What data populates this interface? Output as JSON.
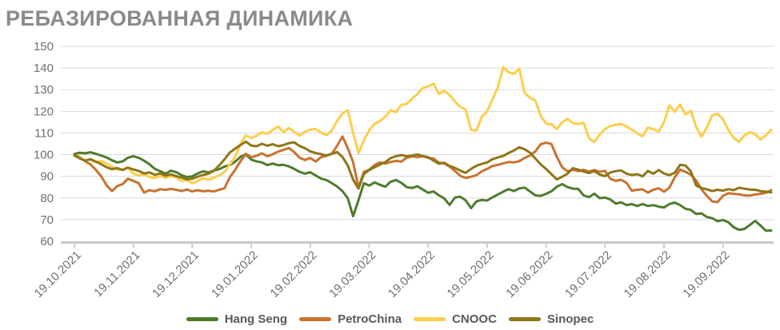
{
  "chart_data": {
    "type": "line",
    "title": "РЕБАЗИРОВАННАЯ ДИНАМИКА",
    "xlabel": "",
    "ylabel": "",
    "ylim": [
      60,
      150
    ],
    "yticks": [
      150,
      140,
      130,
      120,
      110,
      100,
      90,
      80,
      70,
      60
    ],
    "grid": true,
    "legend_position": "bottom",
    "x_tick_labels": [
      "19.10.2021",
      "19.11.2021",
      "19.12.2021",
      "19.01.2022",
      "19.02.2022",
      "19.03.2022",
      "19.04.2022",
      "19.05.2022",
      "19.06.2022",
      "19.07.2022",
      "19.08.2022",
      "19.09.2022"
    ],
    "points_per_month": 11,
    "series": [
      {
        "name": "Hang Seng",
        "color": "#4e7b2d",
        "values": [
          100.3,
          100.9,
          100.6,
          101.1,
          100.4,
          99.6,
          98.7,
          97.4,
          96.4,
          96.9,
          98.6,
          99.3,
          98.5,
          97.2,
          95.6,
          93.4,
          92.4,
          91.2,
          92.6,
          91.9,
          90.5,
          89.7,
          90.0,
          91.3,
          92.3,
          91.8,
          92.6,
          93.3,
          94.5,
          95.2,
          96.8,
          99.0,
          100.1,
          97.7,
          96.9,
          96.4,
          95.2,
          95.9,
          95.1,
          95.3,
          94.6,
          93.4,
          92.1,
          91.2,
          91.9,
          90.4,
          89.0,
          88.3,
          86.9,
          85.3,
          83.2,
          79.9,
          71.6,
          79.0,
          86.8,
          85.7,
          87.2,
          86.1,
          85.2,
          87.5,
          88.3,
          87.0,
          85.0,
          84.6,
          85.4,
          83.9,
          82.4,
          83.0,
          81.2,
          79.8,
          76.8,
          80.2,
          80.6,
          78.9,
          75.3,
          78.4,
          79.1,
          78.8,
          80.3,
          81.6,
          82.9,
          84.1,
          83.2,
          84.4,
          84.8,
          83.0,
          81.2,
          81.0,
          81.9,
          83.1,
          85.2,
          86.4,
          85.0,
          84.3,
          84.2,
          81.2,
          80.4,
          82.0,
          79.9,
          80.2,
          79.3,
          77.4,
          78.0,
          76.7,
          77.2,
          76.3,
          77.2,
          76.3,
          76.7,
          76.0,
          75.6,
          77.2,
          77.9,
          76.7,
          75.0,
          74.5,
          72.6,
          72.9,
          71.2,
          70.7,
          69.3,
          69.8,
          68.8,
          66.5,
          65.3,
          65.7,
          67.5,
          69.4,
          67.3,
          64.9,
          65.0
        ]
      },
      {
        "name": "PetroChina",
        "color": "#c9722f",
        "values": [
          99.8,
          98.9,
          97.0,
          95.5,
          93.0,
          90.0,
          85.9,
          83.2,
          85.5,
          86.4,
          88.9,
          87.9,
          86.8,
          82.5,
          83.6,
          83.1,
          84.1,
          83.7,
          84.2,
          83.8,
          83.2,
          83.9,
          83.0,
          83.6,
          83.1,
          83.4,
          83.0,
          83.8,
          84.5,
          89.6,
          93.0,
          97.0,
          100.4,
          98.8,
          99.5,
          100.6,
          99.3,
          100.2,
          101.4,
          102.2,
          103.1,
          101.2,
          98.6,
          97.5,
          98.5,
          96.8,
          98.8,
          99.5,
          100.3,
          104.0,
          108.4,
          103.0,
          96.5,
          84.8,
          92.0,
          93.0,
          95.2,
          96.4,
          95.9,
          96.6,
          97.1,
          96.8,
          98.6,
          99.2,
          98.8,
          99.3,
          98.5,
          98.2,
          96.3,
          95.9,
          94.5,
          92.5,
          90.2,
          89.3,
          89.8,
          90.5,
          92.3,
          93.4,
          94.8,
          95.3,
          96.0,
          96.6,
          96.4,
          97.0,
          98.5,
          99.6,
          101.5,
          104.8,
          105.5,
          104.9,
          99.0,
          94.2,
          92.3,
          93.1,
          92.4,
          93.0,
          92.2,
          92.9,
          92.1,
          92.5,
          88.8,
          87.9,
          88.4,
          87.0,
          83.4,
          83.8,
          84.0,
          82.5,
          83.8,
          84.5,
          82.9,
          84.8,
          89.5,
          93.1,
          92.1,
          90.8,
          88.0,
          84.0,
          81.0,
          78.4,
          78.1,
          81.0,
          82.2,
          81.9,
          81.7,
          81.2,
          81.1,
          81.6,
          81.9,
          82.4,
          83.6
        ]
      },
      {
        "name": "CNOOC",
        "color": "#fcce4b",
        "values": [
          99.5,
          98.6,
          97.4,
          97.8,
          96.5,
          97.1,
          95.8,
          94.6,
          93.0,
          93.3,
          94.0,
          91.2,
          90.4,
          91.0,
          89.7,
          89.3,
          90.2,
          89.3,
          90.2,
          89.5,
          87.8,
          88.3,
          86.8,
          87.8,
          89.1,
          88.5,
          89.3,
          90.4,
          92.0,
          95.5,
          99.0,
          105.0,
          108.9,
          107.7,
          108.8,
          110.4,
          109.6,
          111.4,
          113.0,
          110.4,
          112.3,
          110.5,
          108.8,
          110.6,
          111.5,
          111.9,
          110.2,
          109.0,
          111.0,
          115.5,
          119.0,
          120.5,
          110.0,
          100.8,
          106.5,
          111.3,
          114.2,
          115.5,
          117.5,
          120.5,
          119.6,
          123.0,
          123.4,
          125.8,
          128.0,
          130.8,
          131.5,
          132.8,
          128.0,
          129.5,
          127.5,
          124.5,
          122.0,
          120.8,
          111.5,
          111.0,
          117.5,
          120.0,
          125.5,
          131.0,
          140.5,
          138.0,
          137.3,
          139.8,
          128.5,
          126.3,
          125.0,
          118.0,
          114.3,
          114.0,
          111.8,
          115.0,
          116.5,
          114.6,
          114.2,
          114.8,
          107.5,
          105.8,
          109.3,
          111.8,
          113.2,
          113.8,
          114.2,
          113.0,
          111.5,
          109.9,
          108.5,
          112.5,
          111.8,
          110.6,
          115.0,
          122.7,
          119.8,
          123.2,
          118.6,
          120.3,
          112.8,
          108.3,
          112.5,
          118.2,
          118.9,
          116.3,
          111.5,
          107.8,
          105.9,
          108.9,
          110.4,
          109.5,
          107.0,
          108.9,
          111.5
        ]
      },
      {
        "name": "Sinopec",
        "color": "#8f7617",
        "values": [
          99.6,
          98.3,
          97.2,
          97.9,
          96.8,
          95.6,
          94.2,
          93.3,
          93.8,
          92.9,
          94.0,
          93.2,
          92.5,
          91.3,
          91.8,
          90.7,
          91.4,
          90.3,
          90.9,
          90.1,
          89.4,
          88.6,
          88.9,
          89.8,
          90.6,
          91.2,
          92.5,
          95.0,
          97.8,
          101.0,
          102.8,
          104.5,
          106.0,
          104.2,
          103.9,
          105.0,
          104.1,
          104.8,
          103.9,
          104.4,
          105.3,
          105.7,
          104.0,
          103.0,
          101.5,
          100.8,
          100.2,
          99.6,
          100.4,
          101.2,
          99.0,
          95.0,
          88.5,
          84.3,
          91.0,
          92.9,
          94.2,
          95.4,
          96.6,
          98.4,
          99.3,
          99.8,
          99.2,
          99.6,
          100.1,
          99.4,
          98.8,
          97.2,
          95.8,
          96.3,
          94.8,
          93.9,
          92.6,
          91.6,
          93.4,
          94.9,
          95.7,
          96.4,
          97.9,
          98.7,
          99.4,
          100.8,
          101.9,
          103.4,
          102.5,
          100.9,
          98.2,
          95.5,
          93.4,
          91.0,
          88.6,
          89.8,
          91.2,
          93.8,
          93.1,
          92.2,
          91.5,
          92.4,
          90.8,
          90.1,
          91.8,
          92.4,
          92.7,
          91.2,
          90.6,
          91.0,
          90.0,
          92.5,
          91.2,
          92.9,
          91.3,
          90.5,
          91.6,
          95.3,
          95.0,
          92.3,
          85.8,
          84.6,
          84.0,
          83.2,
          83.8,
          83.4,
          84.1,
          83.6,
          84.7,
          84.3,
          83.9,
          83.8,
          83.2,
          82.9,
          82.6
        ]
      }
    ],
    "style": {
      "title_color": "#8a8a8a",
      "axis_label_color": "#6f6f6f",
      "gridline_color": "#d9d9d9",
      "axis_line_color": "#c9c9c9",
      "legend_text_color": "#595959",
      "line_width": 3
    }
  }
}
